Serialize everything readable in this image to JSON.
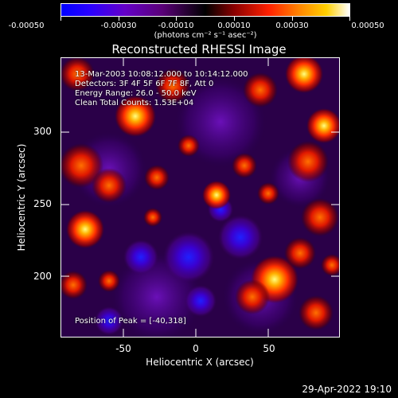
{
  "colorbar": {
    "tick_labels": [
      "-0.00050",
      "-0.00030",
      "-0.00010",
      "0.00010",
      "0.00030",
      "0.00050"
    ],
    "unit_label": "(photons cm⁻² s⁻¹ asec⁻²)",
    "range": [
      -0.0005,
      0.0005
    ]
  },
  "title": "Reconstructed RHESSI Image",
  "annotations": {
    "time": "13-Mar-2003 10:08:12.000 to 10:14:12.000",
    "detectors": "Detectors: 3F 4F 5F 6F 7F 8F, Att 0",
    "energy": "Energy Range: 26.0 - 50.0 keV",
    "method": "Clean     Total Counts: 1.53E+04",
    "peak": "Position of Peak = [-40,318]"
  },
  "axes": {
    "x_label": "Heliocentric X (arcsec)",
    "y_label": "Heliocentric Y (arcsec)",
    "x_ticks": [
      "-50",
      "0",
      "50"
    ],
    "y_ticks": [
      "300",
      "250",
      "200"
    ],
    "x_range": [
      -95,
      97
    ],
    "y_range": [
      155,
      348
    ]
  },
  "colors": {
    "positive_hot": "#ff3000",
    "positive_max": "#ffffff",
    "negative": "#3a00c8",
    "background": "#000000"
  },
  "footer": {
    "timestamp": "29-Apr-2022 19:10"
  }
}
